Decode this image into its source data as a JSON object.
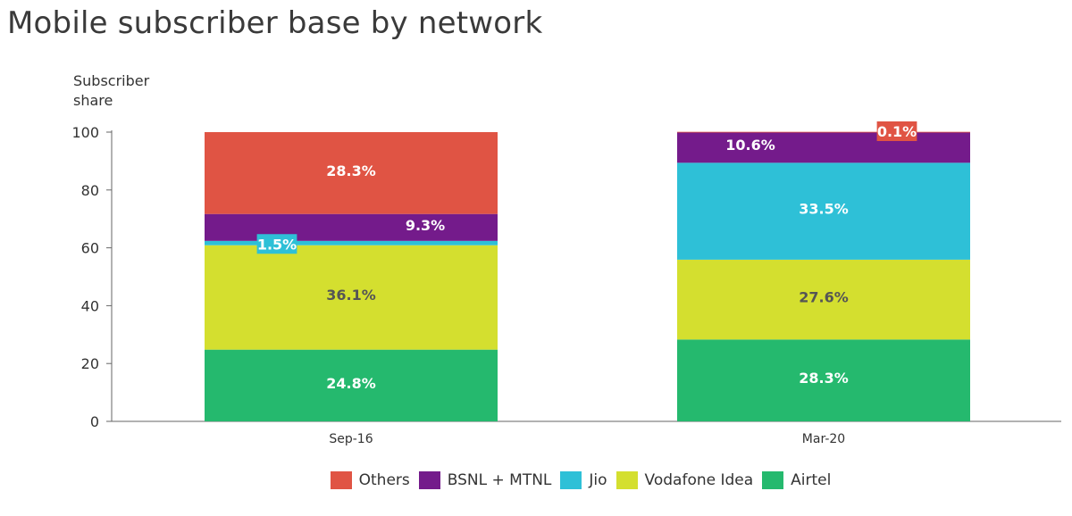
{
  "chart_data": {
    "type": "bar",
    "stacked": true,
    "title": "Mobile subscriber base by network",
    "ylabel_lines": [
      "Subscriber",
      "share"
    ],
    "xlabel": "",
    "ylim": [
      0,
      100
    ],
    "yticks": [
      0,
      20,
      40,
      60,
      80,
      100
    ],
    "categories": [
      "Sep-16",
      "Mar-20"
    ],
    "grid": false,
    "legend_position": "bottom",
    "series": [
      {
        "name": "Airtel",
        "color": "#25b96e",
        "values": [
          24.8,
          28.3
        ],
        "labels": [
          "24.8%",
          "28.3%"
        ],
        "label_color": "#ffffff"
      },
      {
        "name": "Vodafone Idea",
        "color": "#d4df2f",
        "values": [
          36.1,
          27.6
        ],
        "labels": [
          "36.1%",
          "27.6%"
        ],
        "label_color": "#555555"
      },
      {
        "name": "Jio",
        "color": "#2ec0d7",
        "values": [
          1.5,
          33.5
        ],
        "labels": [
          "1.5%",
          "33.5%"
        ],
        "label_color": "#ffffff"
      },
      {
        "name": "BSNL + MTNL",
        "color": "#741b8b",
        "values": [
          9.3,
          10.6
        ],
        "labels": [
          "9.3%",
          "10.6%"
        ],
        "label_color": "#ffffff"
      },
      {
        "name": "Others",
        "color": "#e05444",
        "values": [
          28.3,
          0.1
        ],
        "labels": [
          "28.3%",
          "0.1%"
        ],
        "label_color": "#ffffff"
      }
    ],
    "legend_order": [
      "Others",
      "BSNL + MTNL",
      "Jio",
      "Vodafone Idea",
      "Airtel"
    ]
  }
}
